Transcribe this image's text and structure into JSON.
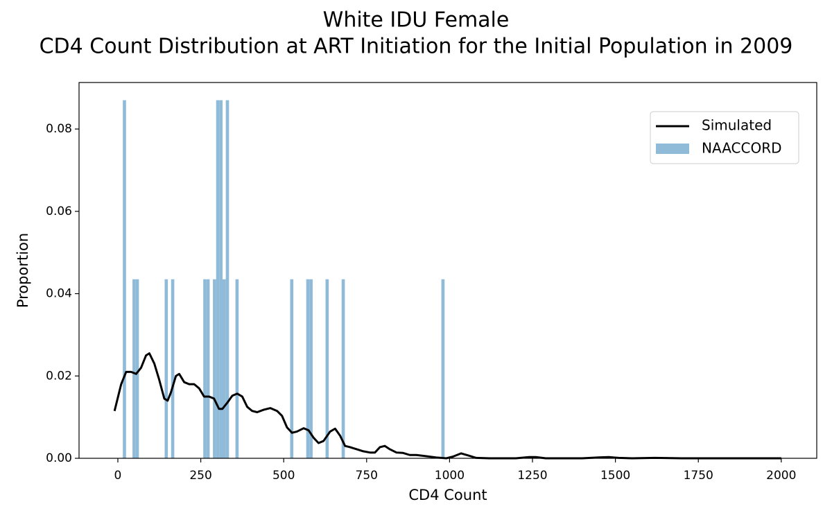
{
  "chart_data": {
    "type": "histogram",
    "title": "White IDU Female",
    "subtitle": "CD4 Count Distribution at ART Initiation for the Initial Population in 2009",
    "x_label": "CD4 Count",
    "y_label": "Proportion",
    "xlim": [
      -117,
      2107
    ],
    "ylim": [
      0,
      0.0913
    ],
    "xticks": [
      0,
      250,
      500,
      750,
      1000,
      1250,
      1500,
      1750,
      2000
    ],
    "yticks": [
      {
        "value": 0,
        "label": "0.00"
      },
      {
        "value": 0.02,
        "label": "0.02"
      },
      {
        "value": 0.04,
        "label": "0.04"
      },
      {
        "value": 0.06,
        "label": "0.06"
      },
      {
        "value": 0.08,
        "label": "0.08"
      }
    ],
    "legend": "upper right",
    "line": {
      "name": "Simulated",
      "color": "#000000",
      "x": [
        -10,
        10,
        25,
        40,
        55,
        70,
        85,
        95,
        110,
        125,
        140,
        150,
        160,
        175,
        185,
        200,
        215,
        230,
        245,
        260,
        275,
        290,
        305,
        315,
        330,
        345,
        360,
        375,
        390,
        405,
        420,
        440,
        460,
        480,
        495,
        510,
        525,
        540,
        560,
        575,
        590,
        605,
        620,
        640,
        655,
        670,
        685,
        700,
        720,
        740,
        760,
        775,
        790,
        805,
        820,
        840,
        860,
        880,
        900,
        930,
        960,
        990,
        1010,
        1035,
        1060,
        1080,
        1120,
        1200,
        1240,
        1260,
        1290,
        1400,
        1450,
        1480,
        1510,
        1550,
        1620,
        1700,
        2000
      ],
      "values": [
        0.0115,
        0.018,
        0.021,
        0.021,
        0.0205,
        0.022,
        0.025,
        0.0255,
        0.023,
        0.019,
        0.0145,
        0.014,
        0.016,
        0.02,
        0.0205,
        0.0185,
        0.018,
        0.018,
        0.017,
        0.015,
        0.015,
        0.0145,
        0.012,
        0.012,
        0.0135,
        0.0152,
        0.0157,
        0.015,
        0.0125,
        0.0115,
        0.0112,
        0.0118,
        0.0122,
        0.0115,
        0.0103,
        0.0075,
        0.0062,
        0.0065,
        0.0073,
        0.0068,
        0.005,
        0.0037,
        0.0042,
        0.0065,
        0.0072,
        0.0055,
        0.003,
        0.0027,
        0.0022,
        0.0017,
        0.0014,
        0.0014,
        0.0027,
        0.003,
        0.0022,
        0.0014,
        0.0013,
        0.0008,
        0.0008,
        0.0005,
        0.0002,
        0,
        0.0004,
        0.0012,
        0.0006,
        0.0001,
        0,
        0,
        0.0003,
        0.0003,
        0,
        0,
        0.0002,
        0.0003,
        0.0001,
        0,
        0.0001,
        0,
        0
      ]
    },
    "histogram": {
      "name": "NAACCORD",
      "color": "#8fbbd9",
      "bins": [
        15,
        24.7,
        34.4,
        44.1,
        53.8,
        63.5,
        73.2,
        82.9,
        92.6,
        102.3,
        112,
        121.7,
        131.4,
        141.1,
        150.8,
        160.5,
        170.2,
        179.9,
        189.6,
        199.3,
        209,
        218.7,
        228.4,
        238.1,
        247.8,
        257.5,
        267.2,
        276.9,
        286.6,
        296.3,
        306,
        315.7,
        325.4,
        335.1,
        344.8,
        354.5,
        364.2,
        373.9,
        383.6,
        393.3,
        403,
        412.7,
        422.4,
        432.1,
        441.8,
        451.5,
        461.2,
        470.9,
        480.6,
        490.3,
        500,
        509.7,
        519.4,
        529.1,
        538.8,
        548.5,
        558.2,
        567.9,
        577.6,
        587.3,
        597,
        606.7,
        616.4,
        626.1,
        635.8,
        645.5,
        655.2,
        664.9,
        674.6,
        684.3,
        694,
        703.7,
        713.4,
        723.1,
        732.8,
        742.5,
        752.2,
        761.9,
        771.6,
        781.3,
        791,
        800.7,
        810.4,
        820.1,
        829.8,
        839.5,
        849.2,
        858.9,
        868.6,
        878.3,
        888,
        897.7,
        907.4,
        917.1,
        926.8,
        936.5,
        946.2,
        955.9,
        965.6,
        975.3,
        985
      ],
      "values": [
        0.087,
        0,
        0,
        0.0435,
        0.0435,
        0,
        0,
        0,
        0,
        0,
        0,
        0,
        0,
        0.0435,
        0,
        0.0435,
        0,
        0,
        0,
        0,
        0,
        0,
        0,
        0,
        0,
        0.0435,
        0.0435,
        0,
        0.0435,
        0.087,
        0.087,
        0.0435,
        0.087,
        0,
        0,
        0.0435,
        0,
        0,
        0,
        0,
        0,
        0,
        0,
        0,
        0,
        0,
        0,
        0,
        0,
        0,
        0,
        0,
        0.0435,
        0,
        0,
        0,
        0,
        0.0435,
        0.0435,
        0,
        0,
        0,
        0,
        0.0435,
        0,
        0,
        0,
        0,
        0.0435,
        0,
        0,
        0,
        0,
        0,
        0,
        0,
        0,
        0,
        0,
        0,
        0,
        0,
        0,
        0,
        0,
        0,
        0,
        0,
        0,
        0,
        0,
        0,
        0,
        0,
        0,
        0,
        0,
        0,
        0,
        0.0435
      ]
    }
  }
}
